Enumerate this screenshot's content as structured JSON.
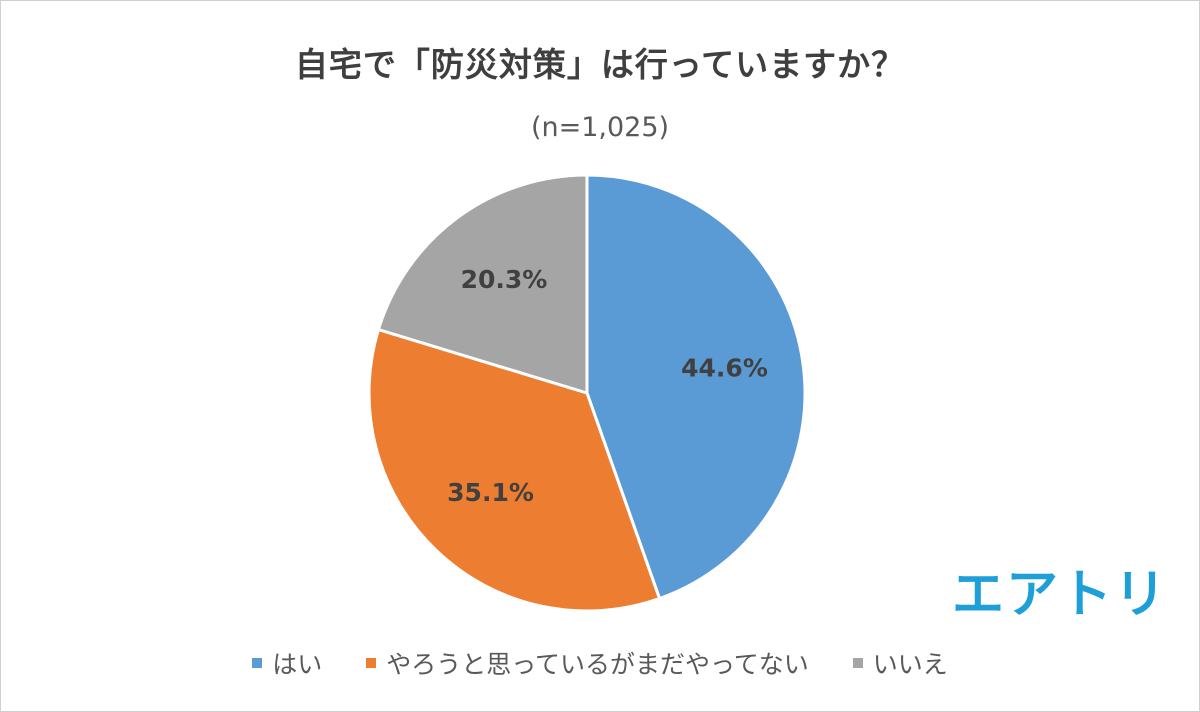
{
  "chart_data": {
    "type": "pie",
    "title": "自宅で「防災対策」は行っていますか？",
    "subtitle": "(n=1,025)",
    "categories": [
      "はい",
      "やろうと思っているがまだやってない",
      "いいえ"
    ],
    "values": [
      44.6,
      35.1,
      20.3
    ],
    "labels": [
      "44.6%",
      "35.1%",
      "20.3%"
    ],
    "colors": [
      "#5b9bd5",
      "#ed7d31",
      "#a5a5a5"
    ],
    "legend_position": "bottom",
    "start_angle": "12 o'clock",
    "direction": "clockwise"
  },
  "brand": {
    "logo_text": "エアトリ",
    "color": "#1e9fd8"
  }
}
